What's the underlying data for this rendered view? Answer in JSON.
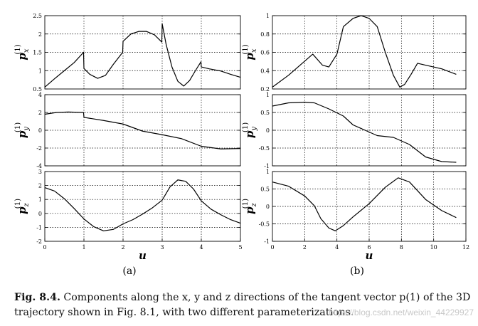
{
  "figure": {
    "panel_labels": [
      "(a)",
      "(b)"
    ],
    "caption_label": "Fig. 8.4.",
    "caption_text": "Components along the x, y and z directions of the tangent vector p(1) of the 3D trajectory shown in Fig. 8.1, with two different parameterizations.",
    "watermark": "https://blog.csdn.net/weixin_44229927"
  },
  "chart_data": [
    {
      "id": "a-px",
      "type": "line",
      "panel": "a",
      "row": 0,
      "ylabel": "p_x^(1)",
      "xlabel": "",
      "xlim": [
        0,
        5
      ],
      "ylim": [
        0.5,
        2.5
      ],
      "xticks": [],
      "yticks": [
        0.5,
        1,
        1.5,
        2,
        2.5
      ],
      "ytick_labels": [
        "0.5",
        "1",
        "1.5",
        "2",
        "2.5"
      ],
      "grid": true,
      "series": [
        {
          "values": [
            [
              0,
              0.55
            ],
            [
              0.25,
              0.78
            ],
            [
              0.5,
              1.0
            ],
            [
              0.75,
              1.22
            ],
            [
              0.99,
              1.5
            ],
            [
              1.0,
              1.06
            ],
            [
              1.15,
              0.9
            ],
            [
              1.35,
              0.79
            ],
            [
              1.55,
              0.87
            ],
            [
              1.75,
              1.17
            ],
            [
              1.99,
              1.5
            ],
            [
              2.0,
              1.8
            ],
            [
              2.2,
              2.0
            ],
            [
              2.4,
              2.07
            ],
            [
              2.6,
              2.07
            ],
            [
              2.8,
              1.98
            ],
            [
              2.99,
              1.78
            ],
            [
              3.0,
              2.28
            ],
            [
              3.1,
              1.72
            ],
            [
              3.25,
              1.1
            ],
            [
              3.4,
              0.71
            ],
            [
              3.55,
              0.58
            ],
            [
              3.7,
              0.73
            ],
            [
              3.85,
              1.0
            ],
            [
              3.99,
              1.24
            ],
            [
              4.0,
              1.1
            ],
            [
              4.2,
              1.05
            ],
            [
              4.5,
              0.99
            ],
            [
              4.75,
              0.9
            ],
            [
              5.0,
              0.82
            ]
          ]
        }
      ]
    },
    {
      "id": "a-py",
      "type": "line",
      "panel": "a",
      "row": 1,
      "ylabel": "p_y^(1)",
      "xlabel": "",
      "xlim": [
        0,
        5
      ],
      "ylim": [
        -4,
        4
      ],
      "xticks": [],
      "yticks": [
        -4,
        -2,
        0,
        2,
        4
      ],
      "ytick_labels": [
        "-4",
        "-2",
        "0",
        "2",
        "4"
      ],
      "grid": true,
      "series": [
        {
          "values": [
            [
              0,
              1.8
            ],
            [
              0.3,
              2.0
            ],
            [
              0.6,
              2.05
            ],
            [
              0.99,
              2.0
            ],
            [
              1.0,
              1.45
            ],
            [
              1.5,
              1.1
            ],
            [
              2.0,
              0.7
            ],
            [
              2.5,
              -0.1
            ],
            [
              3.0,
              -0.5
            ],
            [
              3.5,
              -0.95
            ],
            [
              4.0,
              -1.8
            ],
            [
              4.5,
              -2.1
            ],
            [
              5.0,
              -2.05
            ]
          ]
        }
      ]
    },
    {
      "id": "a-pz",
      "type": "line",
      "panel": "a",
      "row": 2,
      "ylabel": "p_z^(1)",
      "xlabel": "u",
      "xlim": [
        0,
        5
      ],
      "ylim": [
        -2,
        3
      ],
      "xticks": [
        0,
        1,
        2,
        3,
        4,
        5
      ],
      "xtick_labels": [
        "0",
        "1",
        "2",
        "3",
        "4",
        "5"
      ],
      "yticks": [
        -2,
        -1,
        0,
        1,
        2,
        3
      ],
      "ytick_labels": [
        "-2",
        "-1",
        "0",
        "1",
        "2",
        "3"
      ],
      "grid": true,
      "series": [
        {
          "values": [
            [
              0,
              1.85
            ],
            [
              0.25,
              1.6
            ],
            [
              0.5,
              1.05
            ],
            [
              0.75,
              0.35
            ],
            [
              1.0,
              -0.4
            ],
            [
              1.25,
              -0.95
            ],
            [
              1.5,
              -1.25
            ],
            [
              1.75,
              -1.15
            ],
            [
              2.0,
              -0.75
            ],
            [
              2.25,
              -0.45
            ],
            [
              2.5,
              -0.05
            ],
            [
              2.75,
              0.4
            ],
            [
              3.0,
              0.95
            ],
            [
              3.2,
              1.9
            ],
            [
              3.4,
              2.4
            ],
            [
              3.6,
              2.3
            ],
            [
              3.8,
              1.75
            ],
            [
              4.0,
              0.9
            ],
            [
              4.25,
              0.3
            ],
            [
              4.5,
              -0.1
            ],
            [
              4.75,
              -0.45
            ],
            [
              5.0,
              -0.7
            ]
          ]
        }
      ]
    },
    {
      "id": "b-px",
      "type": "line",
      "panel": "b",
      "row": 0,
      "ylabel": "p_x^(1)",
      "xlabel": "",
      "xlim": [
        0,
        12
      ],
      "ylim": [
        0.2,
        1
      ],
      "xticks": [],
      "yticks": [
        0.2,
        0.4,
        0.6,
        0.8,
        1
      ],
      "ytick_labels": [
        "0.2",
        "0.4",
        "0.6",
        "0.8",
        "1"
      ],
      "grid": true,
      "series": [
        {
          "values": [
            [
              0,
              0.22
            ],
            [
              1,
              0.35
            ],
            [
              2.5,
              0.58
            ],
            [
              3.1,
              0.46
            ],
            [
              3.5,
              0.44
            ],
            [
              4.0,
              0.58
            ],
            [
              4.4,
              0.88
            ],
            [
              5.0,
              0.97
            ],
            [
              5.5,
              1.0
            ],
            [
              6.0,
              0.97
            ],
            [
              6.5,
              0.88
            ],
            [
              7.0,
              0.6
            ],
            [
              7.5,
              0.35
            ],
            [
              7.9,
              0.22
            ],
            [
              8.2,
              0.25
            ],
            [
              8.6,
              0.36
            ],
            [
              9.0,
              0.48
            ],
            [
              9.5,
              0.46
            ],
            [
              10.5,
              0.42
            ],
            [
              11.4,
              0.36
            ]
          ]
        }
      ]
    },
    {
      "id": "b-py",
      "type": "line",
      "panel": "b",
      "row": 1,
      "ylabel": "p_y^(1)",
      "xlabel": "",
      "xlim": [
        0,
        12
      ],
      "ylim": [
        -1,
        1
      ],
      "xticks": [],
      "yticks": [
        -1,
        -0.5,
        0,
        0.5,
        1
      ],
      "ytick_labels": [
        "-1",
        "-0.5",
        "0",
        "0.5",
        "1"
      ],
      "grid": true,
      "series": [
        {
          "values": [
            [
              0,
              0.68
            ],
            [
              1,
              0.77
            ],
            [
              2,
              0.79
            ],
            [
              2.6,
              0.77
            ],
            [
              3.5,
              0.6
            ],
            [
              4.4,
              0.4
            ],
            [
              5.0,
              0.15
            ],
            [
              6.0,
              -0.05
            ],
            [
              6.5,
              -0.15
            ],
            [
              7.5,
              -0.2
            ],
            [
              8.5,
              -0.4
            ],
            [
              9.5,
              -0.75
            ],
            [
              10.5,
              -0.88
            ],
            [
              11.4,
              -0.9
            ]
          ]
        }
      ]
    },
    {
      "id": "b-pz",
      "type": "line",
      "panel": "b",
      "row": 2,
      "ylabel": "p_z^(1)",
      "xlabel": "u",
      "xlim": [
        0,
        12
      ],
      "ylim": [
        -1,
        1
      ],
      "xticks": [
        0,
        2,
        4,
        6,
        8,
        10,
        12
      ],
      "xtick_labels": [
        "0",
        "2",
        "4",
        "6",
        "8",
        "10",
        "12"
      ],
      "yticks": [
        -1,
        -0.5,
        0,
        0.5,
        1
      ],
      "ytick_labels": [
        "-1",
        "-0.5",
        "0",
        "0.5",
        "1"
      ],
      "grid": true,
      "series": [
        {
          "values": [
            [
              0,
              0.7
            ],
            [
              1,
              0.58
            ],
            [
              2,
              0.3
            ],
            [
              2.6,
              0.02
            ],
            [
              3.0,
              -0.35
            ],
            [
              3.5,
              -0.62
            ],
            [
              3.9,
              -0.7
            ],
            [
              4.4,
              -0.55
            ],
            [
              5.0,
              -0.3
            ],
            [
              6.0,
              0.08
            ],
            [
              7.0,
              0.55
            ],
            [
              7.8,
              0.82
            ],
            [
              8.5,
              0.7
            ],
            [
              9.5,
              0.2
            ],
            [
              10.5,
              -0.12
            ],
            [
              11.4,
              -0.32
            ]
          ]
        }
      ]
    }
  ]
}
